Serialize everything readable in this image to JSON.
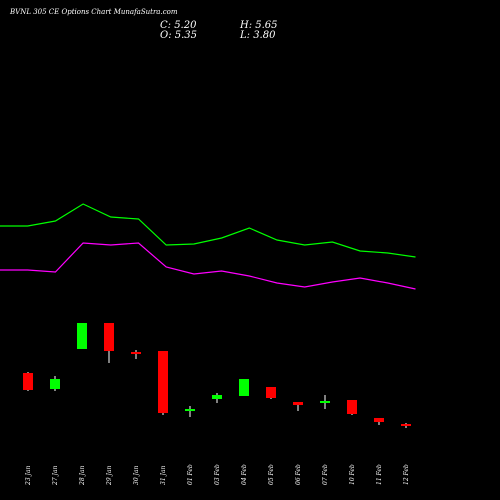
{
  "header": {
    "title": "BVNL 305 CE Options Chart MunafaSutra.com",
    "close": "C: 5.20",
    "open": "O: 5.35",
    "high": "H: 5.65",
    "low": "L: 3.80"
  },
  "chart_data": {
    "type": "candlestick",
    "categories": [
      "23 Jan",
      "27 Jan",
      "28 Jan",
      "29 Jan",
      "30 Jan",
      "31 Jan",
      "01 Feb",
      "03 Feb",
      "04 Feb",
      "05 Feb",
      "06 Feb",
      "07 Feb",
      "10 Feb",
      "11 Feb",
      "12 Feb"
    ],
    "candles": [
      {
        "date": "23 Jan",
        "open": 77,
        "close": 60,
        "high": 78,
        "low": 59
      },
      {
        "date": "27 Jan",
        "open": 61,
        "close": 71,
        "high": 74,
        "low": 59
      },
      {
        "date": "28 Jan",
        "open": 101,
        "close": 127,
        "high": 127,
        "low": 101
      },
      {
        "date": "29 Jan",
        "open": 127,
        "close": 99,
        "high": 127,
        "low": 87
      },
      {
        "date": "30 Jan",
        "open": 98,
        "close": 96,
        "high": 100,
        "low": 91
      },
      {
        "date": "31 Jan",
        "open": 99,
        "close": 37,
        "high": 99,
        "low": 35
      },
      {
        "date": "01 Feb",
        "open": 39,
        "close": 41,
        "high": 44,
        "low": 33
      },
      {
        "date": "03 Feb",
        "open": 51,
        "close": 55,
        "high": 57,
        "low": 47
      },
      {
        "date": "04 Feb",
        "open": 54,
        "close": 71,
        "high": 71,
        "low": 54
      },
      {
        "date": "05 Feb",
        "open": 63,
        "close": 52,
        "high": 63,
        "low": 51
      },
      {
        "date": "06 Feb",
        "open": 48,
        "close": 45,
        "high": 48,
        "low": 39
      },
      {
        "date": "07 Feb",
        "open": 47,
        "close": 49,
        "high": 55,
        "low": 41
      },
      {
        "date": "10 Feb",
        "open": 50,
        "close": 36,
        "high": 50,
        "low": 35
      },
      {
        "date": "11 Feb",
        "open": 32,
        "close": 28,
        "high": 32,
        "low": 25
      },
      {
        "date": "12 Feb",
        "open": 26,
        "close": 25,
        "high": 27,
        "low": 22
      }
    ],
    "overlay_series": [
      {
        "color": "#00ff00",
        "values": [
          224,
          224,
          229,
          246,
          233,
          231,
          205,
          206,
          212,
          222,
          210,
          205,
          208,
          199,
          197,
          193
        ]
      },
      {
        "color": "#ff00ff",
        "values": [
          180,
          180,
          178,
          207,
          205,
          207,
          183,
          176,
          179,
          174,
          167,
          163,
          168,
          172,
          167,
          161
        ]
      }
    ],
    "colors": {
      "up": "#00ff00",
      "down": "#ff0000",
      "wick": "#ffffff"
    },
    "grid": false,
    "background": "#000000"
  }
}
